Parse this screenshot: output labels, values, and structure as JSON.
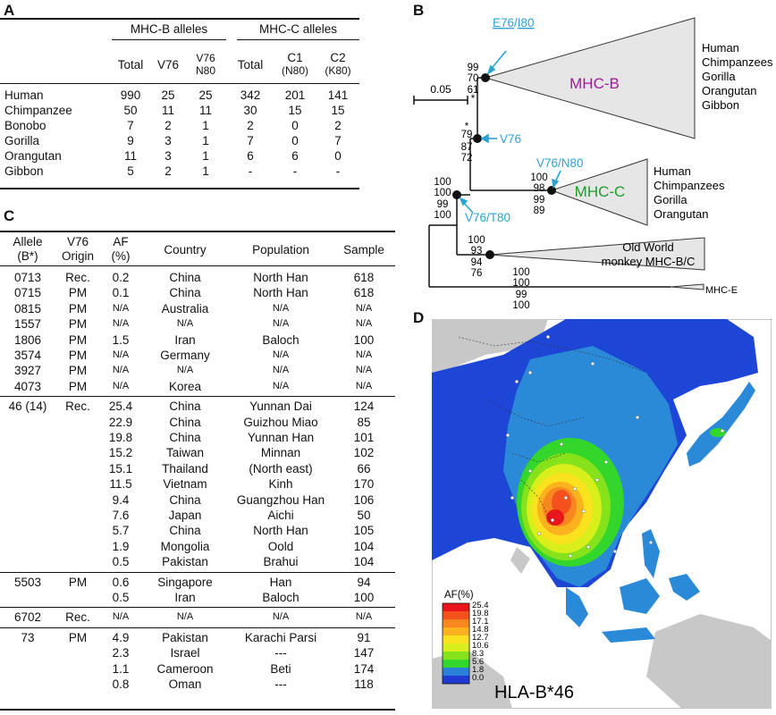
{
  "panels": {
    "a": "A",
    "b": "B",
    "c": "C",
    "d": "D"
  },
  "tableA": {
    "group_b": "MHC-B alleles",
    "group_c": "MHC-C alleles",
    "sub_headers": [
      {
        "l1": "Total",
        "l2": ""
      },
      {
        "l1": "V76",
        "l2": ""
      },
      {
        "l1": "V76",
        "l2": "N80"
      },
      {
        "l1": "Total",
        "l2": ""
      },
      {
        "l1": "C1",
        "l2": "(N80)"
      },
      {
        "l1": "C2",
        "l2": "(K80)"
      }
    ],
    "rows": [
      {
        "species": "Human",
        "cells": [
          "990",
          "25",
          "25",
          "342",
          "201",
          "141"
        ]
      },
      {
        "species": "Chimpanzee",
        "cells": [
          "50",
          "11",
          "11",
          "30",
          "15",
          "15"
        ]
      },
      {
        "species": "Bonobo",
        "cells": [
          "7",
          "2",
          "1",
          "2",
          "0",
          "2"
        ]
      },
      {
        "species": "Gorilla",
        "cells": [
          "9",
          "3",
          "1",
          "7",
          "0",
          "7"
        ]
      },
      {
        "species": "Orangutan",
        "cells": [
          "11",
          "3",
          "1",
          "6",
          "6",
          "0"
        ]
      },
      {
        "species": "Gibbon",
        "cells": [
          "5",
          "2",
          "1",
          "-",
          "-",
          "-"
        ]
      }
    ]
  },
  "tableC": {
    "headers": [
      {
        "l1": "Allele",
        "l2": "(B*)"
      },
      {
        "l1": "V76",
        "l2": "Origin"
      },
      {
        "l1": "AF",
        "l2": "(%)"
      },
      {
        "l1": "Country",
        "l2": ""
      },
      {
        "l1": "Population",
        "l2": ""
      },
      {
        "l1": "Sample",
        "l2": ""
      }
    ],
    "groups": [
      {
        "rows": [
          [
            "0713",
            "Rec.",
            "0.2",
            "China",
            "North Han",
            "618"
          ],
          [
            "0715",
            "PM",
            "0.1",
            "China",
            "North Han",
            "618"
          ],
          [
            "0815",
            "PM",
            "N/A",
            "Australia",
            "N/A",
            "N/A"
          ],
          [
            "1557",
            "PM",
            "N/A",
            "N/A",
            "N/A",
            "N/A"
          ],
          [
            "1806",
            "PM",
            "1.5",
            "Iran",
            "Baloch",
            "100"
          ],
          [
            "3574",
            "PM",
            "N/A",
            "Germany",
            "N/A",
            "N/A"
          ],
          [
            "3927",
            "PM",
            "N/A",
            "N/A",
            "N/A",
            "N/A"
          ],
          [
            "4073",
            "PM",
            "N/A",
            "Korea",
            "N/A",
            "N/A"
          ]
        ]
      },
      {
        "rows": [
          [
            "46 (14)",
            "Rec.",
            "25.4",
            "China",
            "Yunnan Dai",
            "124"
          ],
          [
            "",
            "",
            "22.9",
            "China",
            "Guizhou Miao",
            "85"
          ],
          [
            "",
            "",
            "19.8",
            "China",
            "Yunnan Han",
            "101"
          ],
          [
            "",
            "",
            "15.2",
            "Taiwan",
            "Minnan",
            "102"
          ],
          [
            "",
            "",
            "15.1",
            "Thailand",
            "(North east)",
            "66"
          ],
          [
            "",
            "",
            "11.5",
            "Vietnam",
            "Kinh",
            "170"
          ],
          [
            "",
            "",
            "9.4",
            "China",
            "Guangzhou Han",
            "106"
          ],
          [
            "",
            "",
            "7.6",
            "Japan",
            "Aichi",
            "50"
          ],
          [
            "",
            "",
            "5.7",
            "China",
            "North Han",
            "105"
          ],
          [
            "",
            "",
            "1.9",
            "Mongolia",
            "Oold",
            "104"
          ],
          [
            "",
            "",
            "0.5",
            "Pakistan",
            "Brahui",
            "104"
          ]
        ]
      },
      {
        "rows": [
          [
            "5503",
            "PM",
            "0.6",
            "Singapore",
            "Han",
            "94"
          ],
          [
            "",
            "",
            "0.5",
            "Iran",
            "Baloch",
            "100"
          ]
        ]
      },
      {
        "rows": [
          [
            "6702",
            "Rec.",
            "N/A",
            "N/A",
            "N/A",
            "N/A"
          ]
        ]
      },
      {
        "rows": [
          [
            "73",
            "PM",
            "4.9",
            "Pakistan",
            "Karachi Parsi",
            "91"
          ],
          [
            "",
            "",
            "2.3",
            "Israel",
            "---",
            "147"
          ],
          [
            "",
            "",
            "1.1",
            "Cameroon",
            "Beti",
            "174"
          ],
          [
            "",
            "",
            "0.8",
            "Oman",
            "---",
            "118"
          ]
        ]
      }
    ]
  },
  "tree": {
    "scale": "0.05",
    "mhcb": "MHC-B",
    "mhcc": "MHC-C",
    "owm_l1": "Old World",
    "owm_l2": "monkey MHC-B/C",
    "mhce": "MHC-E",
    "mut_e76": "E76",
    "mut_slash": "/",
    "mut_i80": "I80",
    "mut_v76": "V76",
    "mut_v76n80": "V76/N80",
    "mut_v76t80": "V76/T80",
    "mhcb_species": [
      "Human",
      "Chimpanzees",
      "Gorilla",
      "Orangutan",
      "Gibbon"
    ],
    "mhcc_species": [
      "Human",
      "Chimpanzees",
      "Gorilla",
      "Orangutan"
    ],
    "boot_b": [
      "99",
      "70",
      "61",
      "*"
    ],
    "boot_v76": [
      "*",
      "79",
      "87",
      "72"
    ],
    "boot_c": [
      "100",
      "98",
      "99",
      "89"
    ],
    "boot_root": [
      "100",
      "100",
      "99",
      "100"
    ],
    "boot_owm": [
      "100",
      "93",
      "94",
      "76"
    ],
    "boot_e": [
      "100",
      "100",
      "99",
      "100"
    ],
    "colors": {
      "mhcb": "#a0189c",
      "mhcc": "#1f9b2f",
      "mutation": "#2ba3d2",
      "triangle": "#e6e6e6"
    }
  },
  "map": {
    "legend_title": "AF(%)",
    "legend_values": [
      "25.4",
      "19.8",
      "17.1",
      "14.8",
      "12.7",
      "10.6",
      "8.3",
      "5.6",
      "1.8",
      "0.0"
    ],
    "legend_colors": [
      "#e8161a",
      "#f5511d",
      "#f7871e",
      "#fbb21f",
      "#fbe21e",
      "#d8ef1c",
      "#86e21b",
      "#33d62a",
      "#2a7fd6",
      "#1f3ad2"
    ],
    "caption": "HLA-B*46",
    "colors": {
      "ocean": "#ffffff",
      "base": "#1d46d6",
      "mid": "#2b8ad8",
      "land_nodata": "#c8c8c8"
    }
  }
}
